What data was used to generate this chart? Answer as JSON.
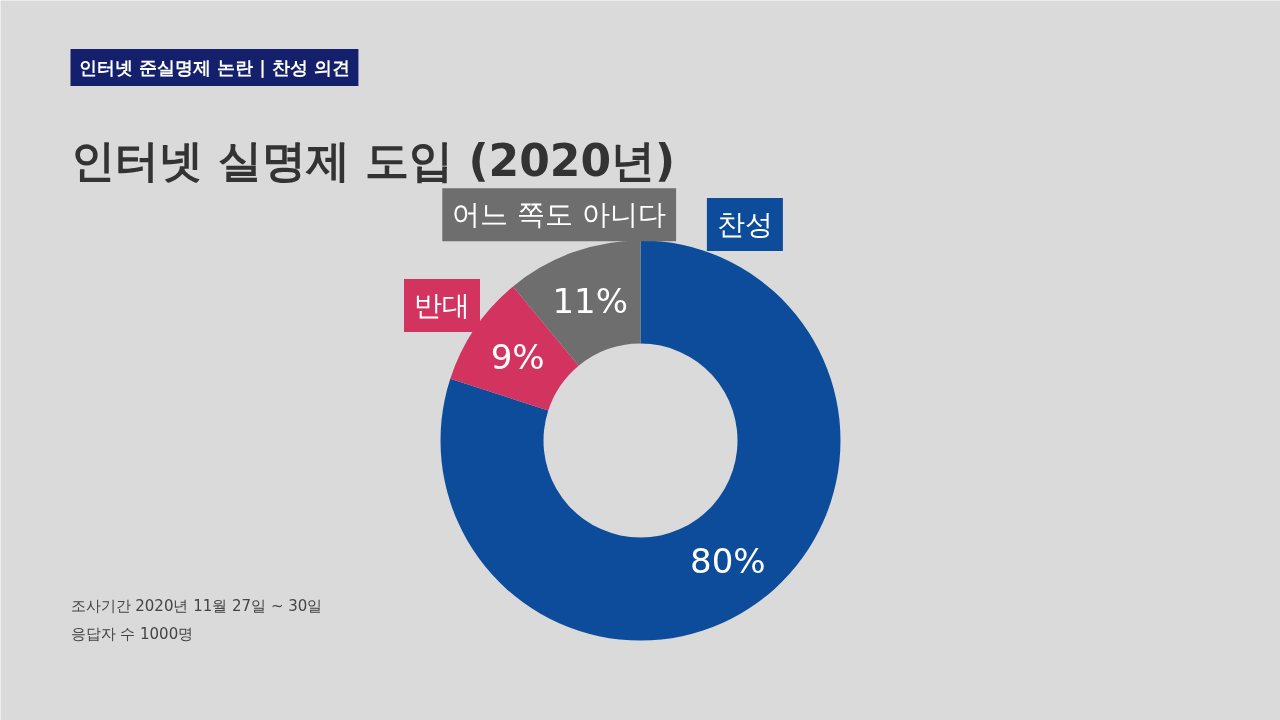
{
  "chart_data": {
    "type": "donut",
    "title": "인터넷 실명제 도입 (2020년)",
    "subtitle": "인터넷 준실명제 논란 | 찬성 의견",
    "categories": [
      "찬성",
      "반대",
      "어느 쪽도 아니다"
    ],
    "values": [
      80,
      9,
      11
    ],
    "colors": [
      "#0d4c9b",
      "#d2335f",
      "#6e6e6e"
    ],
    "value_labels": [
      "80%",
      "9%",
      "11%"
    ],
    "annotations": [
      "조사기간  2020년 11월 27일 ~ 30일",
      "응답자 수  1000명"
    ]
  }
}
